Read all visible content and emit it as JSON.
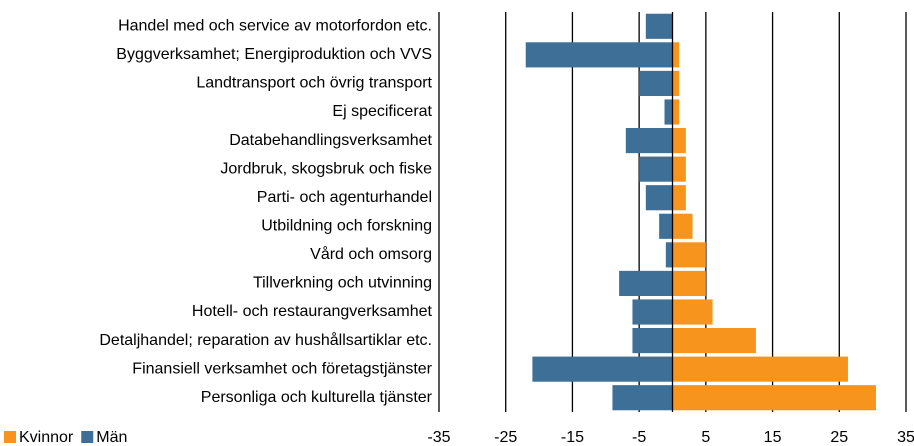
{
  "chart_data": {
    "type": "bar",
    "orientation": "horizontal",
    "categories": [
      "Handel med och service av motorfordon etc.",
      "Byggverksamhet; Energiproduktion och VVS",
      "Landtransport och övrig transport",
      "Ej specificerat",
      "Databehandlingsverksamhet",
      "Jordbruk, skogsbruk och fiske",
      "Parti- och agenturhandel",
      "Utbildning och forskning",
      "Vård och omsorg",
      "Tillverkning och utvinning",
      "Hotell- och restaurangverksamhet",
      "Detaljhandel; reparation av hushållsartiklar etc.",
      "Finansiell verksamhet och företagstjänster",
      "Personliga och kulturella tjänster"
    ],
    "series": [
      {
        "name": "Kvinnor",
        "color": "#f7941d",
        "values": [
          0,
          1,
          1,
          1,
          2,
          2,
          2,
          3,
          5,
          5,
          6,
          12.5,
          26.3,
          30.5
        ]
      },
      {
        "name": "Män",
        "color": "#3e6f96",
        "values": [
          -4,
          -22,
          -5,
          -1.2,
          -7,
          -5,
          -4,
          -2,
          -1,
          -8,
          -6,
          -6,
          -21,
          -9
        ]
      }
    ],
    "xlim": [
      -35,
      35
    ],
    "xticks": [
      -35,
      -25,
      -15,
      -5,
      5,
      15,
      25,
      35
    ],
    "grid": true,
    "legend": "bottom-left"
  }
}
